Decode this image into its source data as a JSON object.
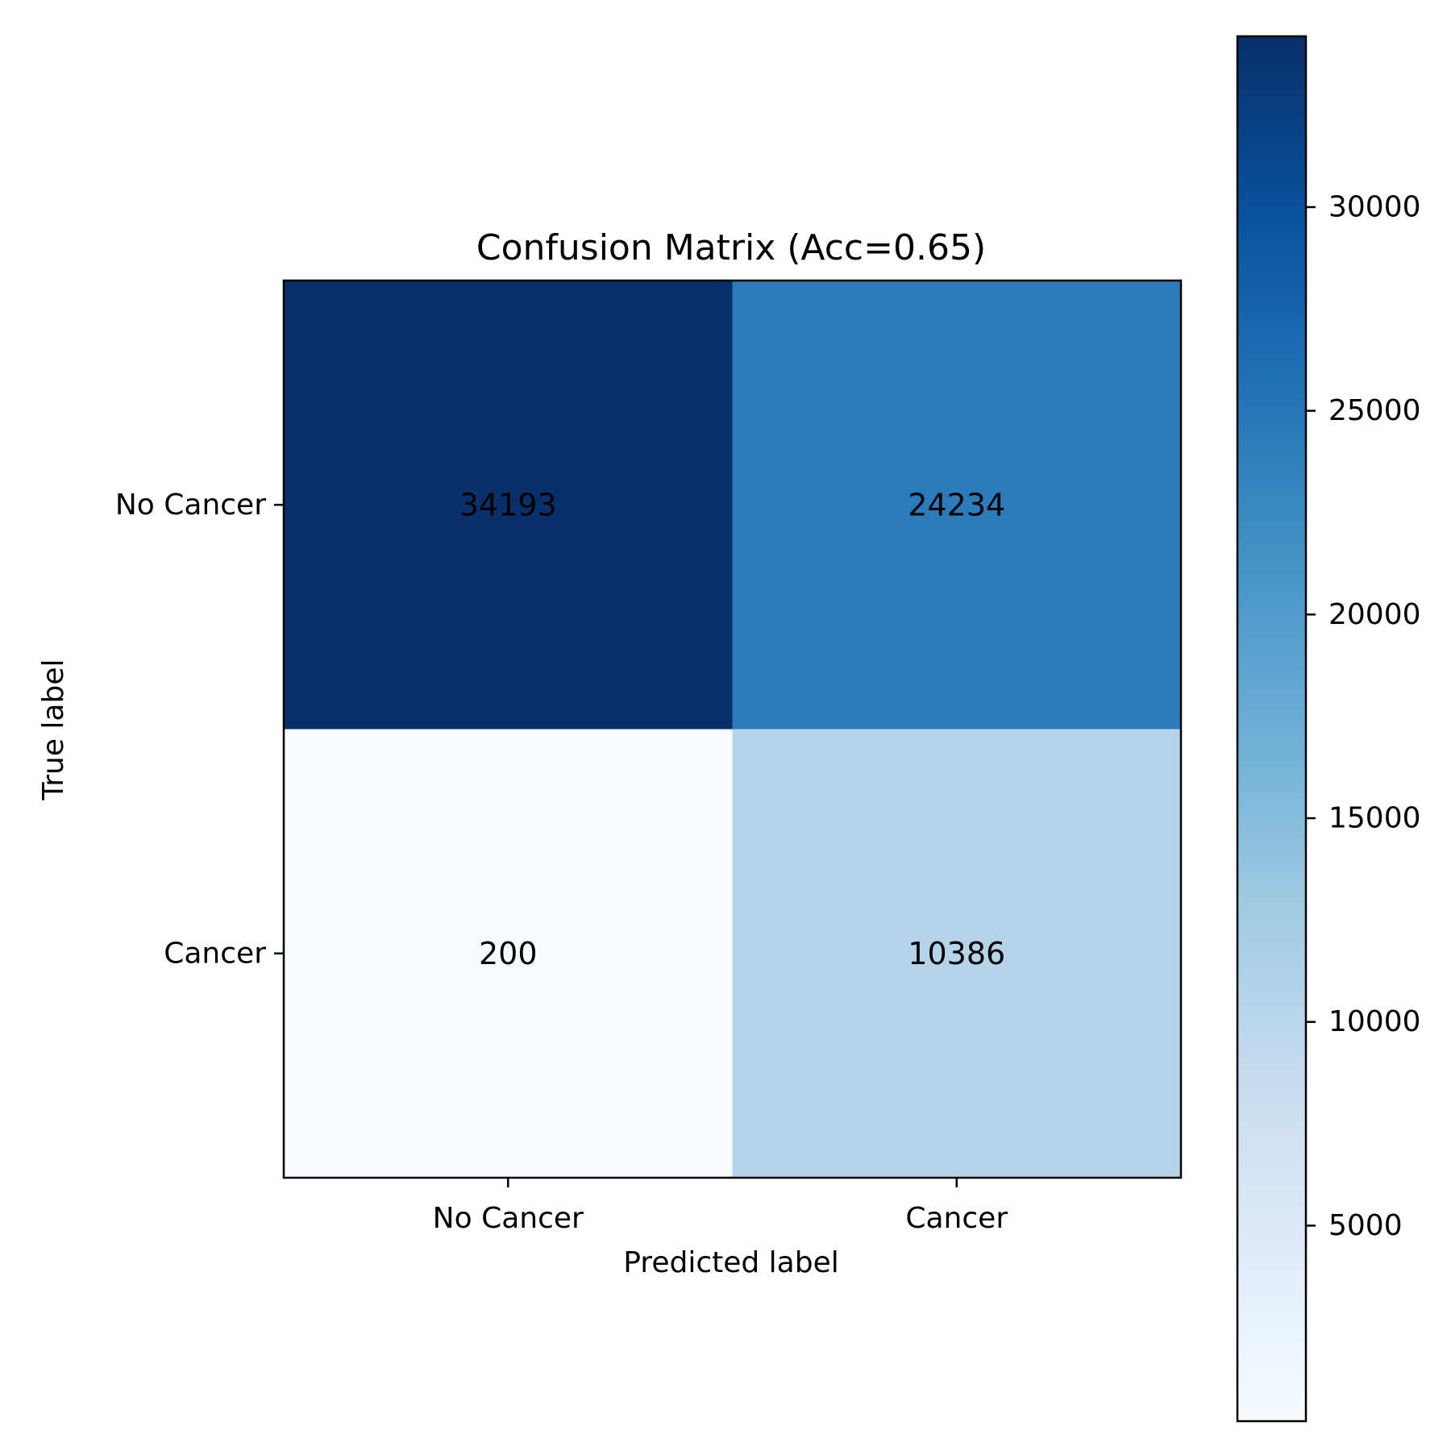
{
  "chart_data": {
    "type": "heatmap",
    "title": "Confusion Matrix (Acc=0.65)",
    "xlabel": "Predicted label",
    "ylabel": "True label",
    "x_categories": [
      "No Cancer",
      "Cancer"
    ],
    "y_categories": [
      "No Cancer",
      "Cancer"
    ],
    "matrix": [
      [
        34193,
        24234
      ],
      [
        200,
        10386
      ]
    ],
    "colormap": "Blues",
    "colorbar": {
      "ticks": [
        5000,
        10000,
        15000,
        20000,
        25000,
        30000
      ],
      "tick_labels": [
        "5000",
        "10000",
        "15000",
        "20000",
        "25000",
        "30000"
      ],
      "range": [
        200,
        34193
      ]
    },
    "colors": {
      "blues_low": "#f7fbff",
      "blues_high": "#08306b",
      "text_light": "#ffffff",
      "text_dark": "#08306b"
    },
    "grid": false
  }
}
